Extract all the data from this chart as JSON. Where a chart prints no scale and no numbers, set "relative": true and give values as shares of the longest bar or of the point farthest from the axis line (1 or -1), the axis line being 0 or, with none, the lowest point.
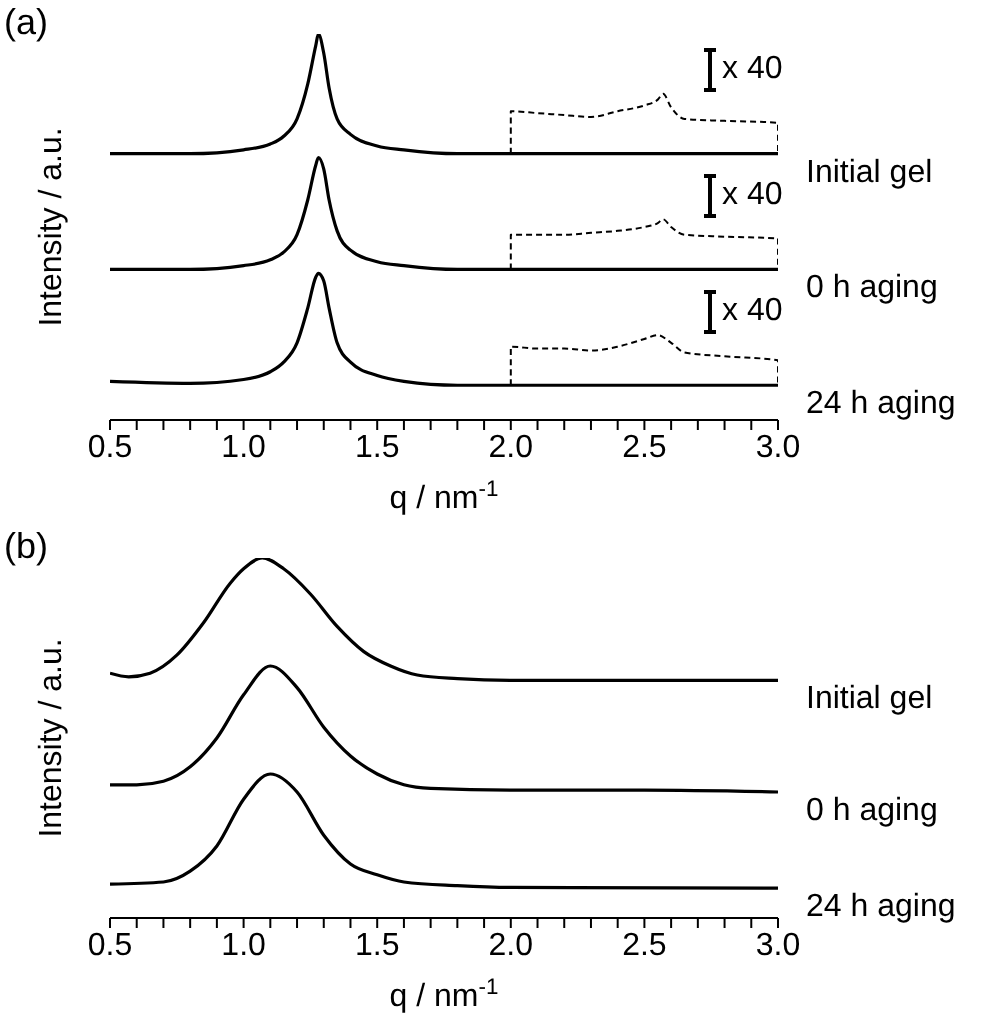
{
  "chart_data": [
    {
      "type": "line",
      "title": "(a)",
      "xlabel": "q / nm$^{-1}$",
      "ylabel": "Intensity / a.u.",
      "relative": true,
      "marker": "none",
      "line_style": "solid",
      "xlim": [
        0.5,
        3.0
      ],
      "xticks": [
        0.5,
        {
          "value": 0.6,
          "label": null
        },
        {
          "value": 0.7,
          "label": null
        },
        {
          "value": 0.8,
          "label": null
        },
        {
          "value": 0.9,
          "label": null
        },
        {
          "value": 1,
          "label": "1.0"
        },
        {
          "value": 1.1,
          "label": null
        },
        {
          "value": 1.2,
          "label": null
        },
        {
          "value": 1.3,
          "label": null
        },
        {
          "value": 1.4,
          "label": null
        },
        1.5,
        {
          "value": 1.6,
          "label": null
        },
        {
          "value": 1.7,
          "label": null
        },
        {
          "value": 1.8,
          "label": null
        },
        {
          "value": 1.9,
          "label": null
        },
        {
          "value": 2,
          "label": "2.0"
        },
        {
          "value": 2.1,
          "label": null
        },
        {
          "value": 2.2,
          "label": null
        },
        {
          "value": 2.3,
          "label": null
        },
        {
          "value": 2.4,
          "label": null
        },
        2.5,
        {
          "value": 2.6,
          "label": null
        },
        {
          "value": 2.7,
          "label": null
        },
        {
          "value": 2.8,
          "label": null
        },
        {
          "value": 2.9,
          "label": null
        },
        {
          "value": 3,
          "label": "3.0"
        }
      ],
      "annotations": [
        "x 40",
        "x 40",
        "x 40"
      ],
      "series": [
        {
          "name": "Initial gel",
          "color": "#000000",
          "x": [
            0.5,
            0.8,
            1.0,
            1.1,
            1.15,
            1.2,
            1.24,
            1.27,
            1.28,
            1.3,
            1.32,
            1.35,
            1.4,
            1.5,
            1.6,
            1.8,
            2.0,
            2.5,
            3.0
          ],
          "values": [
            0.69,
            0.69,
            0.7,
            0.715,
            0.735,
            0.78,
            0.87,
            0.97,
            1.0,
            0.95,
            0.86,
            0.78,
            0.74,
            0.71,
            0.7,
            0.69,
            0.69,
            0.69,
            0.69
          ]
        },
        {
          "name": "0 h aging",
          "color": "#000000",
          "x": [
            0.5,
            0.8,
            1.0,
            1.1,
            1.15,
            1.2,
            1.24,
            1.27,
            1.28,
            1.3,
            1.32,
            1.35,
            1.4,
            1.5,
            1.6,
            1.8,
            2.0,
            2.5,
            3.0
          ],
          "values": [
            0.39,
            0.39,
            0.4,
            0.415,
            0.435,
            0.48,
            0.57,
            0.66,
            0.68,
            0.65,
            0.57,
            0.49,
            0.44,
            0.41,
            0.4,
            0.39,
            0.39,
            0.39,
            0.39
          ]
        },
        {
          "name": "24 h aging",
          "color": "#000000",
          "x": [
            0.5,
            0.8,
            1.0,
            1.1,
            1.15,
            1.2,
            1.24,
            1.27,
            1.28,
            1.3,
            1.32,
            1.35,
            1.4,
            1.5,
            1.6,
            1.8,
            2.0,
            2.5,
            3.0
          ],
          "values": [
            0.1,
            0.095,
            0.105,
            0.125,
            0.15,
            0.2,
            0.29,
            0.37,
            0.38,
            0.36,
            0.29,
            0.2,
            0.15,
            0.115,
            0.1,
            0.09,
            0.09,
            0.09,
            0.09
          ]
        },
        {
          "color": "#000000",
          "line_style": "dashed",
          "x": [
            2.0,
            2.0,
            2.1,
            2.2,
            2.3,
            2.4,
            2.5,
            2.55,
            2.57,
            2.6,
            2.65,
            2.8,
            3.0,
            3.0
          ],
          "values": [
            0.69,
            0.8,
            0.795,
            0.79,
            0.785,
            0.8,
            0.815,
            0.83,
            0.845,
            0.81,
            0.78,
            0.775,
            0.77,
            0.69
          ]
        },
        {
          "color": "#000000",
          "line_style": "dashed",
          "x": [
            2.0,
            2.0,
            2.1,
            2.2,
            2.3,
            2.4,
            2.5,
            2.55,
            2.57,
            2.6,
            2.65,
            2.8,
            3.0,
            3.0
          ],
          "values": [
            0.39,
            0.48,
            0.48,
            0.48,
            0.485,
            0.49,
            0.5,
            0.51,
            0.52,
            0.5,
            0.48,
            0.475,
            0.47,
            0.39
          ]
        },
        {
          "color": "#000000",
          "line_style": "dashed",
          "x": [
            2.0,
            2.0,
            2.1,
            2.2,
            2.3,
            2.4,
            2.5,
            2.55,
            2.6,
            2.65,
            2.8,
            3.0,
            3.0
          ],
          "values": [
            0.09,
            0.19,
            0.185,
            0.185,
            0.18,
            0.19,
            0.21,
            0.22,
            0.2,
            0.175,
            0.165,
            0.155,
            0.09
          ]
        }
      ]
    },
    {
      "type": "line",
      "title": "(b)",
      "xlabel": "q / nm$^{-1}$",
      "ylabel": "Intensity / a.u.",
      "relative": true,
      "marker": "none",
      "line_style": "solid",
      "xlim": [
        0.5,
        3.0
      ],
      "xticks": [
        0.5,
        {
          "value": 0.6,
          "label": null
        },
        {
          "value": 0.7,
          "label": null
        },
        {
          "value": 0.8,
          "label": null
        },
        {
          "value": 0.9,
          "label": null
        },
        {
          "value": 1,
          "label": "1.0"
        },
        {
          "value": 1.1,
          "label": null
        },
        {
          "value": 1.2,
          "label": null
        },
        {
          "value": 1.3,
          "label": null
        },
        {
          "value": 1.4,
          "label": null
        },
        1.5,
        {
          "value": 1.6,
          "label": null
        },
        {
          "value": 1.7,
          "label": null
        },
        {
          "value": 1.8,
          "label": null
        },
        {
          "value": 1.9,
          "label": null
        },
        {
          "value": 2,
          "label": "2.0"
        },
        {
          "value": 2.1,
          "label": null
        },
        {
          "value": 2.2,
          "label": null
        },
        {
          "value": 2.3,
          "label": null
        },
        {
          "value": 2.4,
          "label": null
        },
        2.5,
        {
          "value": 2.6,
          "label": null
        },
        {
          "value": 2.7,
          "label": null
        },
        {
          "value": 2.8,
          "label": null
        },
        {
          "value": 2.9,
          "label": null
        },
        {
          "value": 3,
          "label": "3.0"
        }
      ],
      "series": [
        {
          "name": "Initial gel",
          "color": "#000000",
          "x": [
            0.5,
            0.57,
            0.65,
            0.75,
            0.85,
            0.95,
            1.0,
            1.07,
            1.15,
            1.25,
            1.35,
            1.45,
            1.55,
            1.65,
            1.8,
            2.0,
            2.5,
            3.0
          ],
          "values": [
            0.68,
            0.67,
            0.68,
            0.73,
            0.82,
            0.93,
            0.97,
            1.0,
            0.97,
            0.9,
            0.81,
            0.74,
            0.7,
            0.675,
            0.665,
            0.66,
            0.66,
            0.66
          ]
        },
        {
          "name": "0 h aging",
          "color": "#000000",
          "x": [
            0.5,
            0.6,
            0.7,
            0.8,
            0.9,
            1.0,
            1.1,
            1.2,
            1.3,
            1.4,
            1.5,
            1.6,
            1.7,
            2.0,
            2.5,
            3.0
          ],
          "values": [
            0.37,
            0.37,
            0.38,
            0.42,
            0.5,
            0.62,
            0.7,
            0.64,
            0.53,
            0.45,
            0.4,
            0.37,
            0.36,
            0.355,
            0.355,
            0.35
          ]
        },
        {
          "name": "24 h aging",
          "color": "#000000",
          "x": [
            0.5,
            0.7,
            0.8,
            0.9,
            1.0,
            1.1,
            1.2,
            1.3,
            1.4,
            1.5,
            1.6,
            1.8,
            2.0,
            3.0
          ],
          "values": [
            0.094,
            0.1,
            0.13,
            0.2,
            0.33,
            0.4,
            0.35,
            0.23,
            0.15,
            0.12,
            0.1,
            0.09,
            0.085,
            0.083
          ]
        }
      ]
    }
  ]
}
